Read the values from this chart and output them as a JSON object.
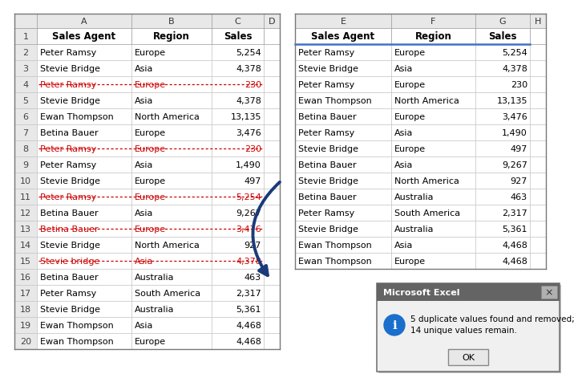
{
  "left_data": [
    [
      "Peter Ramsy",
      "Europe",
      "5,254",
      false
    ],
    [
      "Stevie Bridge",
      "Asia",
      "4,378",
      false
    ],
    [
      "Peter Ramsy",
      "Europe",
      "230",
      true
    ],
    [
      "Stevie Bridge",
      "Asia",
      "4,378",
      false
    ],
    [
      "Ewan Thompson",
      "North America",
      "13,135",
      false
    ],
    [
      "Betina Bauer",
      "Europe",
      "3,476",
      false
    ],
    [
      "Peter Ramsy",
      "Europe",
      "230",
      true
    ],
    [
      "Peter Ramsy",
      "Asia",
      "1,490",
      false
    ],
    [
      "Stevie Bridge",
      "Europe",
      "497",
      false
    ],
    [
      "Peter Ramsy",
      "Europe",
      "5,254",
      true
    ],
    [
      "Betina Bauer",
      "Asia",
      "9,267",
      false
    ],
    [
      "Betina Bauer",
      "Europe",
      "3,476",
      true
    ],
    [
      "Stevie Bridge",
      "North America",
      "927",
      false
    ],
    [
      "Stevie bridge",
      "Asia",
      "4,378",
      true
    ],
    [
      "Betina Bauer",
      "Australia",
      "463",
      false
    ],
    [
      "Peter Ramsy",
      "South America",
      "2,317",
      false
    ],
    [
      "Stevie Bridge",
      "Australia",
      "5,361",
      false
    ],
    [
      "Ewan Thompson",
      "Asia",
      "4,468",
      false
    ],
    [
      "Ewan Thompson",
      "Europe",
      "4,468",
      false
    ]
  ],
  "right_data": [
    [
      "Peter Ramsy",
      "Europe",
      "5,254"
    ],
    [
      "Stevie Bridge",
      "Asia",
      "4,378"
    ],
    [
      "Peter Ramsy",
      "Europe",
      "230"
    ],
    [
      "Ewan Thompson",
      "North America",
      "13,135"
    ],
    [
      "Betina Bauer",
      "Europe",
      "3,476"
    ],
    [
      "Peter Ramsy",
      "Asia",
      "1,490"
    ],
    [
      "Stevie Bridge",
      "Europe",
      "497"
    ],
    [
      "Betina Bauer",
      "Asia",
      "9,267"
    ],
    [
      "Stevie Bridge",
      "North America",
      "927"
    ],
    [
      "Betina Bauer",
      "Australia",
      "463"
    ],
    [
      "Peter Ramsy",
      "South America",
      "2,317"
    ],
    [
      "Stevie Bridge",
      "Australia",
      "5,361"
    ],
    [
      "Ewan Thompson",
      "Asia",
      "4,468"
    ],
    [
      "Ewan Thompson",
      "Europe",
      "4,468"
    ]
  ],
  "headers": [
    "Sales Agent",
    "Region",
    "Sales"
  ],
  "left_col_letters": [
    "A",
    "B",
    "C",
    "D"
  ],
  "right_col_letters": [
    "E",
    "F",
    "G",
    "H"
  ],
  "dup_color": "#cc0000",
  "normal_color": "#000000",
  "arrow_color": "#1a3a7a",
  "dialog_title": "Microsoft Excel",
  "dialog_text": "5 duplicate values found and removed; 14 unique values remain.",
  "dialog_button": "OK",
  "bg_color": "#ffffff",
  "cell_gray": "#e8e8e8",
  "header_blue_line": "#4472c4",
  "grid_ec": "#b0b0b0",
  "outer_ec": "#888888"
}
